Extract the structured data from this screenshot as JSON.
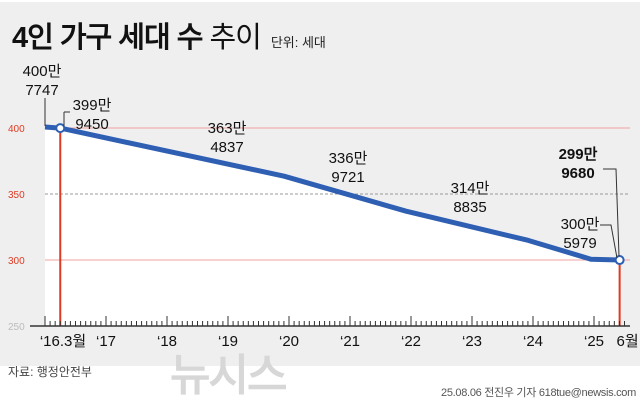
{
  "chart_data": {
    "type": "area",
    "title": "4인 가구 세대 수 추이",
    "title_bold": "4인 가구 세대 수",
    "title_light": "추이",
    "unit_label": "단위: 세대",
    "ylim": [
      250,
      400
    ],
    "y_ticks": [
      400,
      350,
      300,
      250
    ],
    "x_range": [
      2016.0,
      2025.7
    ],
    "x_ticks": [
      {
        "x": 2016,
        "label": "‘16.3월"
      },
      {
        "x": 2017,
        "label": "‘17"
      },
      {
        "x": 2018,
        "label": "‘18"
      },
      {
        "x": 2019,
        "label": "‘19"
      },
      {
        "x": 2020,
        "label": "‘20"
      },
      {
        "x": 2021,
        "label": "‘21"
      },
      {
        "x": 2022,
        "label": "‘22"
      },
      {
        "x": 2023,
        "label": "‘23"
      },
      {
        "x": 2024,
        "label": "‘24"
      },
      {
        "x": 2025,
        "label": "‘25"
      },
      {
        "x": 2025.42,
        "label": "6월"
      }
    ],
    "grid": "horizontal",
    "series": [
      {
        "color": "#2f5fb3",
        "points": [
          {
            "x": 2016.0,
            "y": 400.7747,
            "label": [
              "400만",
              "7747"
            ]
          },
          {
            "x": 2016.25,
            "y": 399.945,
            "label": [
              "399만",
              "9450"
            ],
            "marker": true
          },
          {
            "x": 2019.92,
            "y": 363.4837,
            "label": [
              "363만",
              "4837"
            ]
          },
          {
            "x": 2021.92,
            "y": 336.9721,
            "label": [
              "336만",
              "9721"
            ]
          },
          {
            "x": 2023.92,
            "y": 314.8835,
            "label": [
              "314만",
              "8835"
            ]
          },
          {
            "x": 2024.95,
            "y": 300.5979,
            "label": [
              "300만",
              "5979"
            ]
          },
          {
            "x": 2025.42,
            "y": 299.968,
            "label": [
              "299만",
              "9680"
            ],
            "marker": true,
            "bold": true
          }
        ]
      }
    ],
    "colors": {
      "line": "#2f5fb3",
      "marker_line": "#e03a22",
      "grid_400_300": "#f2a0a0",
      "grid_350": "#999999",
      "y_tick_400_300": "#e03a22"
    }
  },
  "footer": {
    "source": "자료: 행정안전부",
    "credit": "25.08.06 전진우 기자 618tue@newsis.com",
    "watermark": "뉴시스"
  }
}
